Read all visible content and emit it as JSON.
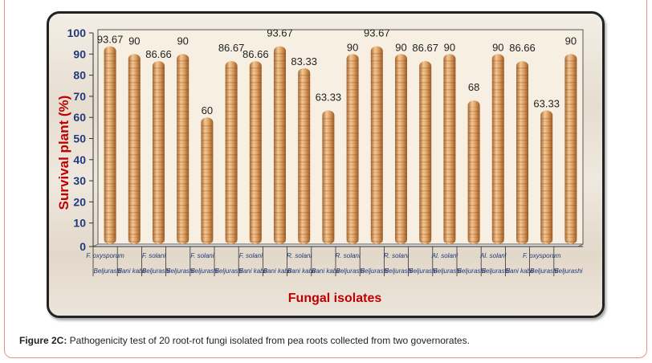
{
  "caption": {
    "label": "Figure 2C:",
    "text": " Pathogenicity test of 20 root-rot fungi isolated from pea roots collected from two governorates."
  },
  "chart_data": {
    "type": "bar",
    "title": "",
    "xlabel": "Fungal isolates",
    "ylabel": "Survival plant (%)",
    "ylim": [
      0,
      100
    ],
    "yticks": [
      0,
      10,
      20,
      30,
      40,
      50,
      60,
      70,
      80,
      90,
      100
    ],
    "species_labels": [
      "F. oxysporum",
      "F. solani",
      "F. solani",
      "F. solani",
      "R. solani",
      "R. solani",
      "R. solani",
      "Al. solani",
      "Al. solani",
      "F. oxysporum"
    ],
    "categories": [
      "Beljurashi",
      "Bani kabir",
      "Beljurashi",
      "Beljurashi",
      "Beljurashi",
      "Beljurashi",
      "Bani kabir",
      "Bani kabir",
      "Bani kabir",
      "Bani kabir",
      "Beljurashi",
      "Beljurashi",
      "Beljurashi",
      "Beljurashi",
      "Beljurashi",
      "Beljurashi",
      "Beljurashi",
      "Bani kabir",
      "Beljurashi",
      "Beljurashi"
    ],
    "values": [
      93.67,
      90,
      86.66,
      90,
      60,
      86.67,
      86.66,
      93.67,
      83.33,
      63.33,
      90,
      93.67,
      90,
      86.67,
      90,
      68,
      90,
      86.66,
      63.33,
      90
    ],
    "data_labels": [
      "93.67",
      "90",
      "86.66",
      "90",
      "60",
      "86.67",
      "86.66",
      "93.67",
      "83.33",
      "63.33",
      "90",
      "93.67",
      "90",
      "86.67",
      "90",
      "68",
      "90",
      "86.66",
      "63.33",
      "90"
    ],
    "colors": {
      "bar_light": "#f0c392",
      "bar_dark": "#b8763e",
      "axis_text": "#1f3a7a",
      "title_text": "#c00000"
    },
    "grid": false
  }
}
